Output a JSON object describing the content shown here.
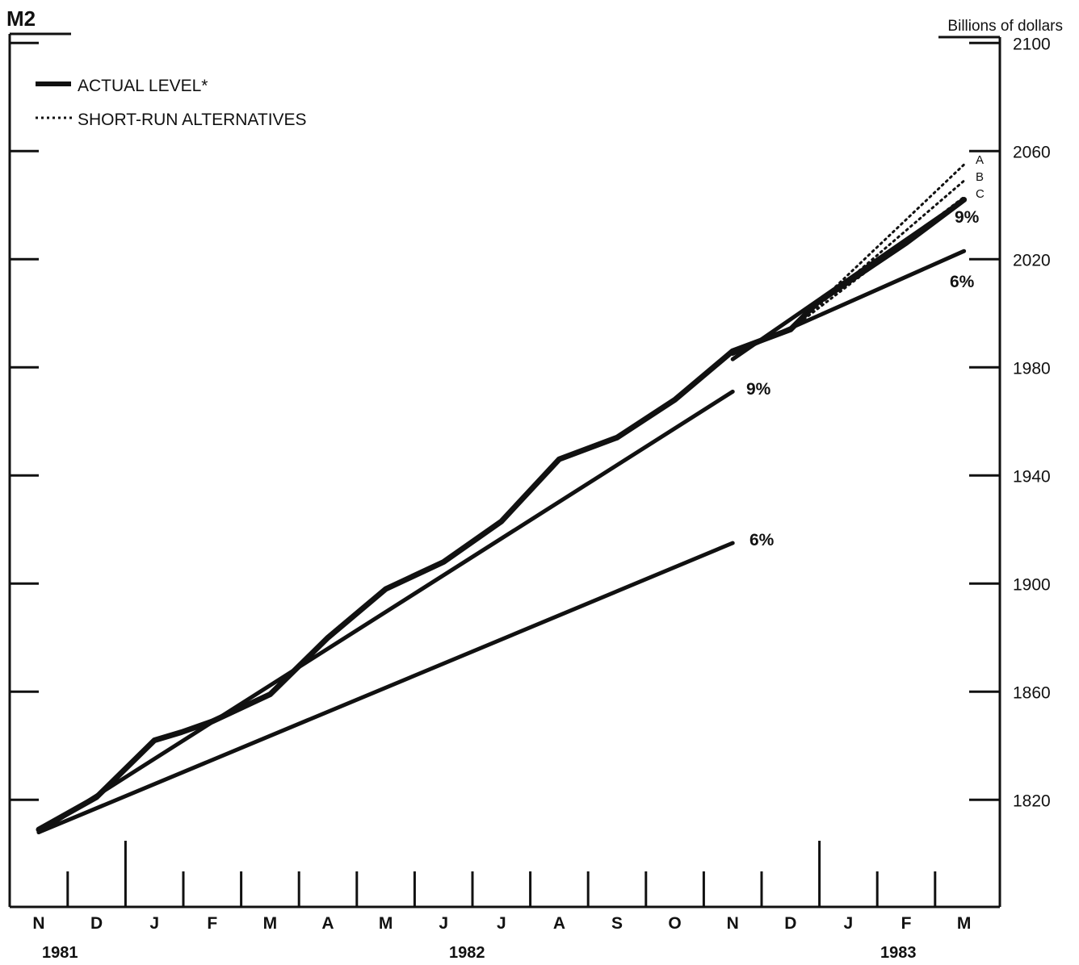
{
  "chart_data": {
    "type": "line",
    "title": "M2",
    "ylabel": "Billions of dollars",
    "ylim": [
      1800,
      2100
    ],
    "yticks": [
      1820,
      1860,
      1900,
      1940,
      1980,
      2020,
      2060,
      2100
    ],
    "ytick_labels": [
      "1820",
      "1860",
      "1900",
      "1940",
      "1980",
      "2020",
      "2060",
      "2100"
    ],
    "x_months": [
      "N",
      "D",
      "J",
      "F",
      "M",
      "A",
      "M",
      "J",
      "J",
      "A",
      "S",
      "O",
      "N",
      "D",
      "J",
      "F",
      "M"
    ],
    "x_years": [
      "1981",
      "1982",
      "1983"
    ],
    "legend": {
      "position": "top-left",
      "actual_label": "ACTUAL LEVEL*",
      "alternatives_label": "SHORT-RUN ALTERNATIVES"
    },
    "series": [
      {
        "name": "ACTUAL LEVEL*",
        "style": "thick",
        "points": [
          [
            "1981-11",
            1809
          ],
          [
            "1981-12",
            1821
          ],
          [
            "1982-01",
            1842
          ],
          [
            "1982-01-15",
            1845
          ],
          [
            "1982-02",
            1849
          ],
          [
            "1982-03",
            1859
          ],
          [
            "1982-04",
            1880
          ],
          [
            "1982-05",
            1898
          ],
          [
            "1982-06",
            1908
          ],
          [
            "1982-07",
            1923
          ],
          [
            "1982-08",
            1946
          ],
          [
            "1982-09",
            1954
          ],
          [
            "1982-10",
            1968
          ],
          [
            "1982-11",
            1986
          ],
          [
            "1982-12",
            1994
          ],
          [
            "1982-12-15",
            2004
          ],
          [
            "1983-02",
            2026
          ],
          [
            "1983-03",
            2042
          ]
        ]
      },
      {
        "label": "9%",
        "style": "thin",
        "points": [
          [
            "1981-11",
            1808
          ],
          [
            "1982-11",
            1971
          ]
        ]
      },
      {
        "label": "6%",
        "style": "thin",
        "points": [
          [
            "1981-11",
            1808
          ],
          [
            "1982-11",
            1915
          ]
        ]
      },
      {
        "label": "9%",
        "style": "thin",
        "points": [
          [
            "1982-11",
            1983
          ],
          [
            "1983-03",
            2042
          ]
        ]
      },
      {
        "label": "6%",
        "style": "thin",
        "points": [
          [
            "1982-11",
            1985
          ],
          [
            "1983-03",
            2023
          ]
        ]
      },
      {
        "label": "A",
        "style": "dotted",
        "points": [
          [
            "1982-12",
            1994
          ],
          [
            "1983-03",
            2055
          ]
        ]
      },
      {
        "label": "B",
        "style": "dotted",
        "points": [
          [
            "1982-12",
            1994
          ],
          [
            "1983-03",
            2049
          ]
        ]
      },
      {
        "label": "C",
        "style": "dotted",
        "points": [
          [
            "1982-12",
            1994
          ],
          [
            "1983-03",
            2043
          ]
        ]
      }
    ],
    "series_labels": {
      "nine_main": "9%",
      "six_main": "6%",
      "nine_end": "9%",
      "six_end": "6%",
      "alt_a": "A",
      "alt_b": "B",
      "alt_c": "C"
    }
  }
}
